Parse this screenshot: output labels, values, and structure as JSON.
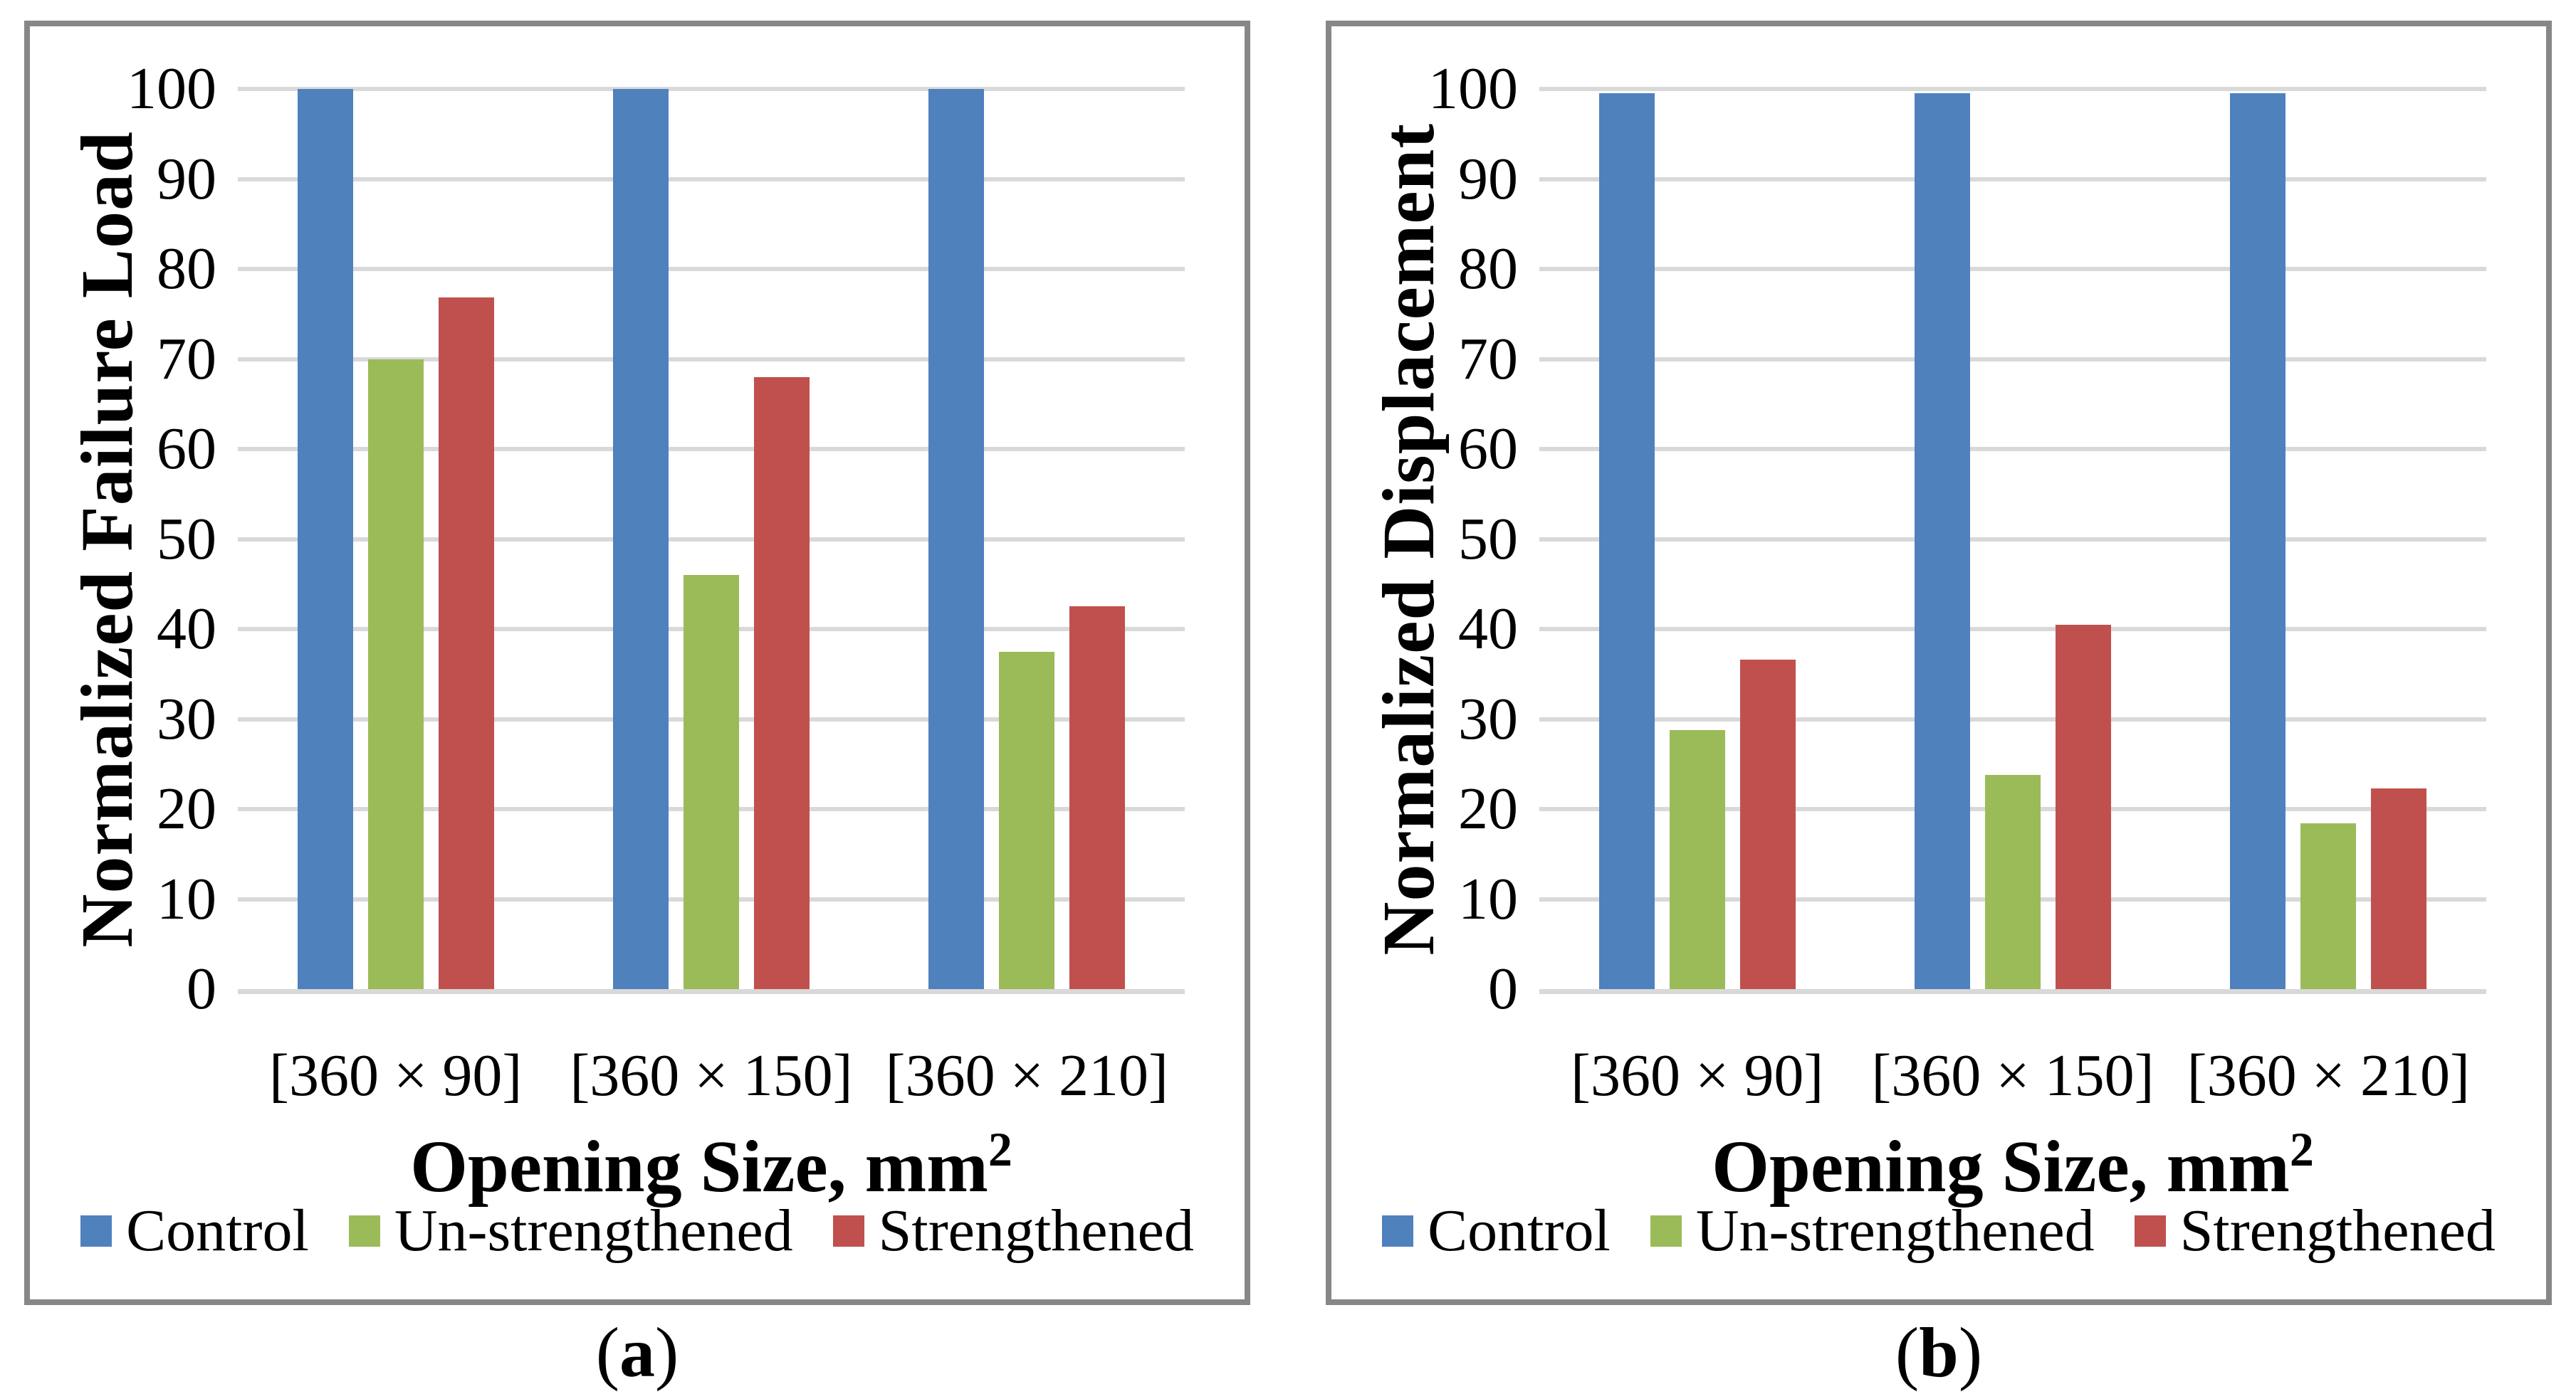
{
  "colors": {
    "control": "#4F81BD",
    "un_strengthened": "#9BBB59",
    "strengthened": "#C0504D",
    "gridline": "#D9D9D9",
    "axis_line": "#D9D9D9",
    "panel_border": "#878787",
    "text": "#000000",
    "background": "#FFFFFF"
  },
  "figure": {
    "captions": [
      {
        "open": "(",
        "letter": "a",
        "close": ")"
      },
      {
        "open": "(",
        "letter": "b",
        "close": ")"
      }
    ]
  },
  "chart_data": [
    {
      "type": "bar",
      "panel_label": "a",
      "title": "",
      "categories": [
        "[360 × 90]",
        "[360 × 150]",
        "[360 × 210]"
      ],
      "series": [
        {
          "name": "Control",
          "color": "#4F81BD",
          "values": [
            100,
            100,
            100
          ]
        },
        {
          "name": "Un-strengthened",
          "color": "#9BBB59",
          "values": [
            70,
            46,
            37.5
          ]
        },
        {
          "name": "Strengthened",
          "color": "#C0504D",
          "values": [
            76.8,
            68,
            42.5
          ]
        }
      ],
      "xlabel": "Opening Size, mm²",
      "xlabel_main": "Opening Size, mm",
      "xlabel_sup": "2",
      "ylabel": "Normalized Failure Load",
      "ylim": [
        0,
        100
      ],
      "yticks": [
        0,
        10,
        20,
        30,
        40,
        50,
        60,
        70,
        80,
        90,
        100
      ],
      "grid": true,
      "legend_position": "bottom"
    },
    {
      "type": "bar",
      "panel_label": "b",
      "title": "",
      "categories": [
        "[360 × 90]",
        "[360 × 150]",
        "[360 × 210]"
      ],
      "series": [
        {
          "name": "Control",
          "color": "#4F81BD",
          "values": [
            99.5,
            99.5,
            99.5
          ]
        },
        {
          "name": "Un-strengthened",
          "color": "#9BBB59",
          "values": [
            28.8,
            23.8,
            18.4
          ]
        },
        {
          "name": "Strengthened",
          "color": "#C0504D",
          "values": [
            36.6,
            40.5,
            22.3
          ]
        }
      ],
      "xlabel": "Opening Size, mm²",
      "xlabel_main": "Opening Size, mm",
      "xlabel_sup": "2",
      "ylabel": "Normalized Displacement",
      "ylim": [
        0,
        100
      ],
      "yticks": [
        0,
        10,
        20,
        30,
        40,
        50,
        60,
        70,
        80,
        90,
        100
      ],
      "grid": true,
      "legend_position": "bottom"
    }
  ]
}
